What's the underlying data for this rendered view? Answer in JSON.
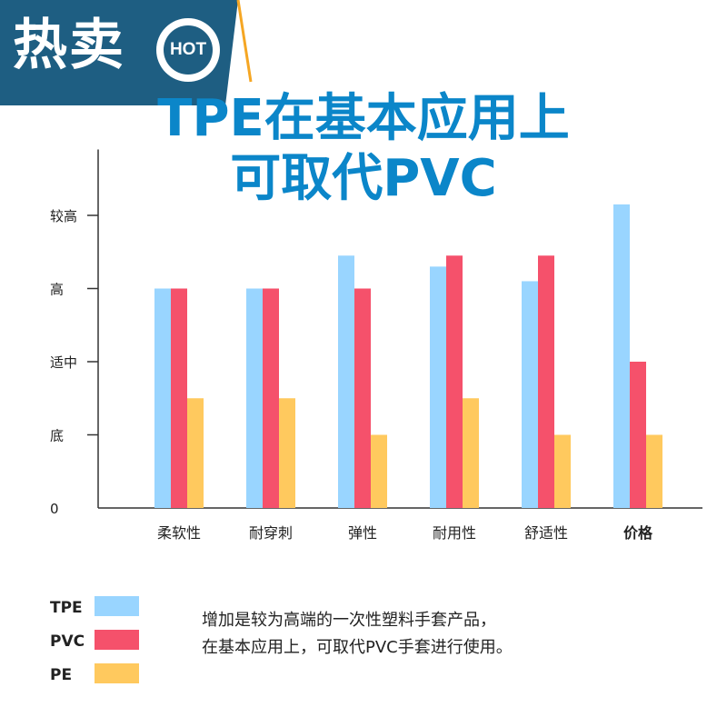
{
  "banner": {
    "label": "热卖",
    "badge": "HOT"
  },
  "title": {
    "line1": "TPE在基本应用上",
    "line2": "可取代PVC"
  },
  "chart_data": {
    "type": "bar",
    "categories": [
      "柔软性",
      "耐穿刺",
      "弹性",
      "耐用性",
      "舒适性",
      "价格"
    ],
    "y_tick_labels": [
      "0",
      "底",
      "适中",
      "高",
      "较高"
    ],
    "y_tick_values": [
      0,
      1,
      2,
      3,
      4
    ],
    "ylim": [
      0,
      4.9
    ],
    "series": [
      {
        "name": "TPE",
        "color": "#99d5ff",
        "values": [
          3.0,
          3.0,
          3.45,
          3.3,
          3.1,
          4.15
        ]
      },
      {
        "name": "PVC",
        "color": "#f5516b",
        "values": [
          3.0,
          3.0,
          3.0,
          3.45,
          3.45,
          2.0
        ]
      },
      {
        "name": "PE",
        "color": "#ffc95e",
        "values": [
          1.5,
          1.5,
          1.0,
          1.5,
          1.0,
          1.0
        ]
      }
    ],
    "emphasized_category": "价格",
    "grid": false,
    "legend_position": "bottom-left"
  },
  "description": {
    "line1": "增加是较为高端的一次性塑料手套产品，",
    "line2": "在基本应用上，可取代PVC手套进行使用。"
  },
  "colors": {
    "banner": "#1e5e82",
    "accent_stripe": "#f5a623",
    "title": "#0b86c9"
  }
}
